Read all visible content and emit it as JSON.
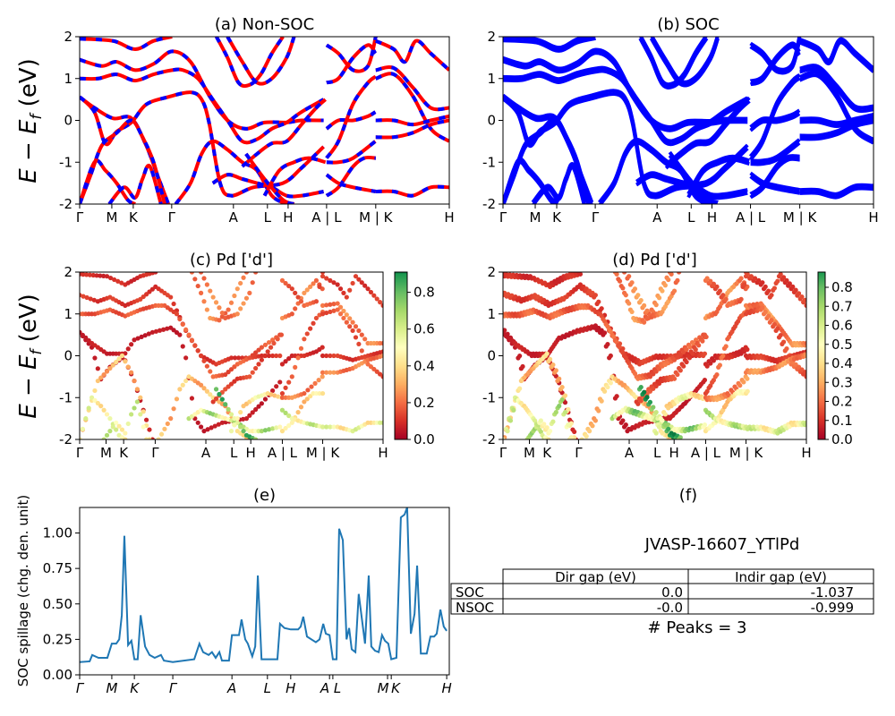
{
  "chart_data": [
    {
      "id": "a",
      "type": "line",
      "title": "(a) Non-SOC",
      "ylabel": {
        "main": "E − E",
        "sub": "f",
        "unit": " (eV)"
      },
      "ylim": [
        -2,
        2
      ],
      "yticks": [
        -2,
        -1,
        0,
        1,
        2
      ],
      "line_colors": [
        "#ff0000",
        "#0000ff"
      ]
    },
    {
      "id": "b",
      "type": "line",
      "title": "(b) SOC",
      "ylim": [
        -2,
        2
      ],
      "yticks": [
        -2,
        -1,
        0,
        1,
        2
      ],
      "line_colors": [
        "#0000ff"
      ]
    },
    {
      "id": "c",
      "type": "scatter",
      "title": "(c)  Pd ['d']",
      "ylabel": {
        "main": "E − E",
        "sub": "f",
        "unit": " (eV)"
      },
      "ylim": [
        -2,
        2
      ],
      "yticks": [
        -2,
        -1,
        0,
        1,
        2
      ],
      "colorbar": {
        "colormap": "RdYlGn",
        "range": [
          0,
          0.91
        ],
        "ticks": [
          "0.0",
          "0.2",
          "0.4",
          "0.6",
          "0.8"
        ]
      }
    },
    {
      "id": "d",
      "type": "scatter",
      "title": "(d) Pd ['d']",
      "ylim": [
        -2,
        2
      ],
      "yticks": [
        -2,
        -1,
        0,
        1,
        2
      ],
      "colorbar": {
        "colormap": "RdYlGn",
        "range": [
          0,
          0.88
        ],
        "ticks": [
          "0.0",
          "0.1",
          "0.2",
          "0.3",
          "0.4",
          "0.5",
          "0.6",
          "0.7",
          "0.8"
        ]
      }
    },
    {
      "id": "e",
      "type": "line",
      "title": "(e)",
      "ylabel": "SOC spillage (chg. den. unit)",
      "ylim": [
        0,
        1.18
      ],
      "xlim": [
        0,
        100
      ],
      "yticks": [
        "0.00",
        "0.25",
        "0.50",
        "0.75",
        "1.00"
      ],
      "color": "#1f77b4",
      "xticks": [
        {
          "label": "Γ",
          "k": 0
        },
        {
          "label": "M",
          "k": 8.7
        },
        {
          "label": "K",
          "k": 14.8
        },
        {
          "label": "Γ",
          "k": 25.2
        },
        {
          "label": "A",
          "k": 41.2
        },
        {
          "label": "L",
          "k": 50.8
        },
        {
          "label": "H",
          "k": 57.1
        },
        {
          "label": "A",
          "k": 67.6
        },
        {
          "label": "L",
          "k": 68.5
        },
        {
          "label": "M",
          "k": 83.3
        },
        {
          "label": "K",
          "k": 84.3
        },
        {
          "label": "H",
          "k": 99.3
        }
      ],
      "points": [
        [
          0,
          0.09
        ],
        [
          2.7,
          0.095
        ],
        [
          3.4,
          0.14
        ],
        [
          5.1,
          0.12
        ],
        [
          7.5,
          0.12
        ],
        [
          8.7,
          0.22
        ],
        [
          9.9,
          0.22
        ],
        [
          10.7,
          0.25
        ],
        [
          11.4,
          0.42
        ],
        [
          12.1,
          0.98
        ],
        [
          13.1,
          0.21
        ],
        [
          14.0,
          0.24
        ],
        [
          14.8,
          0.11
        ],
        [
          15.7,
          0.11
        ],
        [
          16.5,
          0.42
        ],
        [
          17.7,
          0.2
        ],
        [
          18.9,
          0.14
        ],
        [
          20.3,
          0.12
        ],
        [
          22.0,
          0.14
        ],
        [
          22.8,
          0.1
        ],
        [
          25.2,
          0.09
        ],
        [
          31.0,
          0.11
        ],
        [
          32.4,
          0.22
        ],
        [
          33.4,
          0.16
        ],
        [
          34.9,
          0.14
        ],
        [
          35.8,
          0.16
        ],
        [
          36.8,
          0.12
        ],
        [
          37.8,
          0.16
        ],
        [
          38.5,
          0.1
        ],
        [
          40.4,
          0.1
        ],
        [
          41.2,
          0.28
        ],
        [
          43.1,
          0.28
        ],
        [
          43.8,
          0.39
        ],
        [
          44.8,
          0.25
        ],
        [
          45.5,
          0.22
        ],
        [
          46.7,
          0.13
        ],
        [
          47.5,
          0.2
        ],
        [
          48.2,
          0.7
        ],
        [
          49.2,
          0.11
        ],
        [
          53.5,
          0.11
        ],
        [
          54.2,
          0.36
        ],
        [
          55.4,
          0.33
        ],
        [
          57.1,
          0.32
        ],
        [
          59.1,
          0.32
        ],
        [
          59.8,
          0.34
        ],
        [
          60.5,
          0.41
        ],
        [
          61.5,
          0.27
        ],
        [
          63.9,
          0.23
        ],
        [
          64.9,
          0.25
        ],
        [
          65.9,
          0.36
        ],
        [
          66.6,
          0.29
        ],
        [
          67.6,
          0.28
        ],
        [
          68.5,
          0.11
        ],
        [
          69.5,
          0.11
        ],
        [
          70.2,
          1.03
        ],
        [
          71.2,
          0.95
        ],
        [
          72.2,
          0.25
        ],
        [
          72.9,
          0.33
        ],
        [
          73.6,
          0.18
        ],
        [
          74.6,
          0.16
        ],
        [
          75.5,
          0.57
        ],
        [
          77.2,
          0.22
        ],
        [
          78.2,
          0.7
        ],
        [
          78.9,
          0.2
        ],
        [
          79.9,
          0.17
        ],
        [
          80.9,
          0.16
        ],
        [
          81.8,
          0.28
        ],
        [
          82.6,
          0.24
        ],
        [
          83.5,
          0.22
        ],
        [
          84.3,
          0.11
        ],
        [
          85.7,
          0.12
        ],
        [
          86.9,
          1.11
        ],
        [
          87.9,
          1.13
        ],
        [
          88.6,
          1.18
        ],
        [
          89.6,
          0.29
        ],
        [
          90.6,
          0.43
        ],
        [
          91.3,
          0.77
        ],
        [
          92.3,
          0.15
        ],
        [
          93.9,
          0.15
        ],
        [
          94.9,
          0.27
        ],
        [
          95.9,
          0.27
        ],
        [
          96.6,
          0.29
        ],
        [
          97.6,
          0.46
        ],
        [
          98.5,
          0.34
        ],
        [
          99.3,
          0.31
        ]
      ]
    },
    {
      "id": "f",
      "type": "table",
      "title": "(f)",
      "subtitle": "JVASP-16607_YTlPd",
      "columns": [
        "Dir gap (eV)",
        "Indir gap (eV)"
      ],
      "rows": [
        {
          "label": "SOC",
          "values": [
            "0.0",
            "-1.037"
          ]
        },
        {
          "label": "NSOC",
          "values": [
            "-0.0",
            "-0.999"
          ]
        }
      ],
      "footer": "# Peaks = 3"
    }
  ],
  "band_xticks": [
    {
      "label": "Γ",
      "k": 0
    },
    {
      "label": "M",
      "k": 8.7
    },
    {
      "label": "K",
      "k": 14.5
    },
    {
      "label": "Γ",
      "k": 24.9
    },
    {
      "label": "A",
      "k": 41.6
    },
    {
      "label": "L",
      "k": 50.8
    },
    {
      "label": "H",
      "k": 56.4
    },
    {
      "label": "A | L",
      "k": 66.8
    },
    {
      "label": "M | K",
      "k": 80.1
    },
    {
      "label": "H",
      "k": 100
    }
  ],
  "bands": [
    {
      "w": 0.08,
      "pts": [
        [
          0,
          1.95
        ],
        [
          9,
          1.9
        ],
        [
          15,
          1.7
        ],
        [
          20,
          1.9
        ],
        [
          25,
          2.0
        ]
      ]
    },
    {
      "w": 0.1,
      "pts": [
        [
          0,
          1.45
        ],
        [
          6,
          1.3
        ],
        [
          10,
          1.4
        ],
        [
          15,
          1.2
        ],
        [
          20,
          1.35
        ],
        [
          25,
          1.65
        ],
        [
          30,
          1.4
        ],
        [
          35,
          0.6
        ],
        [
          40,
          0.0
        ],
        [
          45,
          -0.2
        ],
        [
          50,
          -0.05
        ],
        [
          56,
          -0.05
        ],
        [
          60,
          0.0
        ],
        [
          66,
          0.0
        ]
      ]
    },
    {
      "w": 0.15,
      "pts": [
        [
          0,
          1.0
        ],
        [
          5,
          1.0
        ],
        [
          10,
          1.1
        ],
        [
          15,
          0.95
        ],
        [
          20,
          1.1
        ],
        [
          25,
          1.2
        ],
        [
          28,
          1.2
        ],
        [
          32,
          1.0
        ],
        [
          36,
          0.5
        ],
        [
          40,
          0.0
        ],
        [
          44,
          -0.5
        ],
        [
          48,
          -0.45
        ],
        [
          52,
          -0.2
        ],
        [
          56,
          -0.05
        ],
        [
          60,
          0.2
        ],
        [
          66,
          0.5
        ]
      ]
    },
    {
      "w": 0.05,
      "pts": [
        [
          0,
          0.56
        ],
        [
          4,
          0.2
        ],
        [
          7,
          -0.56
        ],
        [
          10,
          -0.27
        ],
        [
          14,
          -0.05
        ],
        [
          18,
          0.38
        ],
        [
          24,
          0.56
        ],
        [
          30,
          0.67
        ],
        [
          33,
          0.5
        ],
        [
          35,
          -0.05
        ],
        [
          38,
          -1.5
        ],
        [
          41,
          -1.8
        ],
        [
          47,
          -1.6
        ],
        [
          55,
          -1.5
        ],
        [
          60,
          -1.14
        ],
        [
          66,
          -0.63
        ]
      ]
    },
    {
      "w": 0.06,
      "pts": [
        [
          0,
          0.56
        ],
        [
          4,
          0.3
        ],
        [
          9,
          0.05
        ],
        [
          14,
          0.05
        ],
        [
          18,
          -0.6
        ],
        [
          21,
          -1.3
        ],
        [
          24,
          -2.0
        ]
      ]
    },
    {
      "w": 0.3,
      "pts": [
        [
          0,
          -2.0
        ],
        [
          3,
          -1.3
        ],
        [
          6,
          -0.6
        ],
        [
          10,
          -0.3
        ],
        [
          14,
          0.0
        ],
        [
          17,
          -0.4
        ],
        [
          20,
          -1.0
        ],
        [
          23,
          -2.0
        ]
      ]
    },
    {
      "w": 0.45,
      "pts": [
        [
          0,
          -2
        ],
        [
          4,
          -1.0
        ],
        [
          7,
          -1.2
        ],
        [
          10,
          -1.5
        ],
        [
          13,
          -1.9
        ],
        [
          15,
          -2.0
        ]
      ]
    },
    {
      "w": 0.5,
      "pts": [
        [
          8,
          -2
        ],
        [
          12,
          -1.6
        ],
        [
          15,
          -1.85
        ],
        [
          17,
          -1.4
        ],
        [
          19,
          -1.1
        ],
        [
          22,
          -2
        ]
      ]
    },
    {
      "w": 0.3,
      "pts": [
        [
          26,
          -2
        ],
        [
          30,
          -1.5
        ],
        [
          33,
          -0.8
        ],
        [
          36,
          -0.5
        ],
        [
          40,
          -0.7
        ],
        [
          44,
          -1.0
        ],
        [
          48,
          -1.2
        ],
        [
          52,
          -1.8
        ],
        [
          56,
          -2
        ]
      ]
    },
    {
      "w": 0.55,
      "pts": [
        [
          36,
          -1.5
        ],
        [
          40,
          -1.3
        ],
        [
          44,
          -1.4
        ],
        [
          48,
          -1.5
        ],
        [
          52,
          -1.6
        ],
        [
          56,
          -1.8
        ],
        [
          60,
          -1.8
        ],
        [
          66,
          -1.7
        ]
      ]
    },
    {
      "w": 0.2,
      "pts": [
        [
          37,
          2
        ],
        [
          40,
          1.5
        ],
        [
          43,
          0.9
        ],
        [
          46,
          0.85
        ],
        [
          49,
          1.1
        ],
        [
          52,
          1.6
        ],
        [
          55,
          2
        ]
      ]
    },
    {
      "w": 0.2,
      "pts": [
        [
          40,
          2
        ],
        [
          44,
          1.4
        ],
        [
          48,
          0.9
        ],
        [
          52,
          1.0
        ],
        [
          56,
          1.5
        ],
        [
          58,
          2
        ]
      ]
    },
    {
      "w": 0.12,
      "pts": [
        [
          44,
          -1.1
        ],
        [
          48,
          -0.8
        ],
        [
          52,
          -0.55
        ],
        [
          56,
          -0.5
        ],
        [
          60,
          -0.1
        ],
        [
          64,
          0.3
        ],
        [
          66.5,
          0.5
        ]
      ]
    },
    {
      "w": 0.65,
      "pts": [
        [
          45,
          -0.8
        ],
        [
          50,
          -1.4
        ],
        [
          55,
          -1.9
        ],
        [
          58,
          -2
        ]
      ]
    },
    {
      "w": 0.4,
      "pts": [
        [
          50,
          -1.8
        ],
        [
          54,
          -1.2
        ],
        [
          58,
          -1.0
        ],
        [
          62,
          -0.9
        ],
        [
          66.5,
          -1.0
        ]
      ]
    },
    {
      "w": 0.2,
      "pts": [
        [
          66.8,
          0.9
        ],
        [
          70,
          1.0
        ],
        [
          74,
          1.5
        ],
        [
          78,
          1.8
        ],
        [
          80,
          1.6
        ]
      ]
    },
    {
      "w": 0.08,
      "pts": [
        [
          66.8,
          -0.2
        ],
        [
          70,
          0.0
        ],
        [
          74,
          0.0
        ],
        [
          78,
          0.1
        ],
        [
          80,
          0.2
        ]
      ]
    },
    {
      "w": 0.15,
      "pts": [
        [
          66.8,
          -0.9
        ],
        [
          70,
          -0.5
        ],
        [
          74,
          0.4
        ],
        [
          78,
          0.9
        ],
        [
          80.1,
          1.05
        ]
      ]
    },
    {
      "w": 0.2,
      "pts": [
        [
          66.8,
          -1.0
        ],
        [
          70,
          -1.0
        ],
        [
          74,
          -0.9
        ],
        [
          80,
          -0.5
        ]
      ]
    },
    {
      "w": 0.35,
      "pts": [
        [
          66.8,
          -1.8
        ],
        [
          70,
          -1.6
        ],
        [
          74,
          -1.1
        ],
        [
          77,
          -0.9
        ],
        [
          80.1,
          -0.9
        ]
      ]
    },
    {
      "w": 0.5,
      "pts": [
        [
          66.8,
          -1.3
        ],
        [
          70,
          -1.5
        ],
        [
          74,
          -1.6
        ],
        [
          80.1,
          -1.7
        ]
      ]
    },
    {
      "w": 0.15,
      "pts": [
        [
          66.8,
          1.8
        ],
        [
          70,
          1.6
        ],
        [
          74,
          1.2
        ],
        [
          78,
          1.3
        ],
        [
          80.1,
          2
        ]
      ]
    },
    {
      "w": 0.2,
      "pts": [
        [
          80.1,
          1.2
        ],
        [
          85,
          1.25
        ],
        [
          90,
          0.8
        ],
        [
          95,
          0.3
        ],
        [
          100,
          0.3
        ]
      ]
    },
    {
      "w": 0.15,
      "pts": [
        [
          80.1,
          1.0
        ],
        [
          85,
          1.1
        ],
        [
          90,
          0.6
        ],
        [
          95,
          -0.2
        ],
        [
          100,
          -0.5
        ]
      ]
    },
    {
      "w": 0.1,
      "pts": [
        [
          80.1,
          0.0
        ],
        [
          85,
          0.0
        ],
        [
          90,
          -0.1
        ],
        [
          95,
          0.0
        ],
        [
          100,
          0.1
        ]
      ]
    },
    {
      "w": 0.2,
      "pts": [
        [
          80.1,
          -0.4
        ],
        [
          85,
          -0.4
        ],
        [
          90,
          -0.3
        ],
        [
          95,
          -0.1
        ],
        [
          100,
          0.0
        ]
      ]
    },
    {
      "w": 0.45,
      "pts": [
        [
          80.1,
          -1.7
        ],
        [
          85,
          -1.7
        ],
        [
          90,
          -1.8
        ],
        [
          95,
          -1.6
        ],
        [
          100,
          -1.6
        ]
      ]
    },
    {
      "w": 0.1,
      "pts": [
        [
          80.1,
          1.9
        ],
        [
          85,
          1.7
        ],
        [
          88,
          1.4
        ],
        [
          91,
          1.9
        ],
        [
          95,
          1.6
        ],
        [
          100,
          1.2
        ]
      ]
    }
  ]
}
